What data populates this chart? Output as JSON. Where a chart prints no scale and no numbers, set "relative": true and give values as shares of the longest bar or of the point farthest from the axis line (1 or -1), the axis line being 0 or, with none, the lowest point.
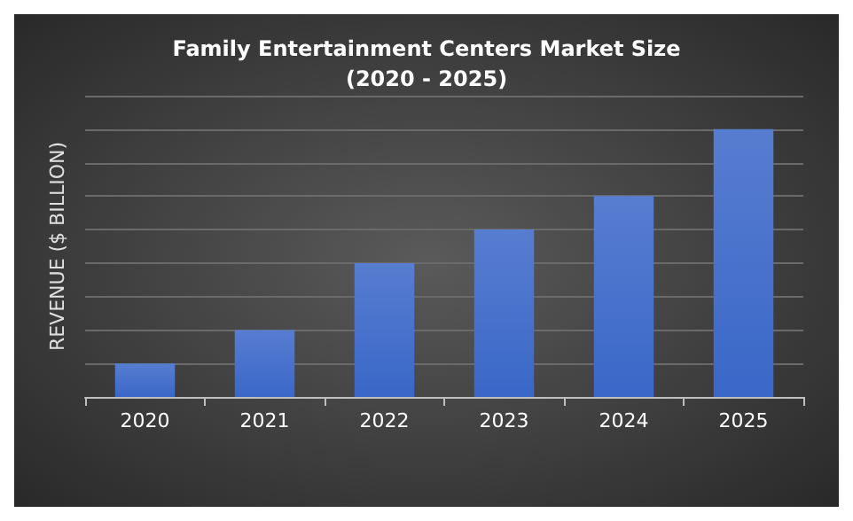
{
  "chart_data": {
    "type": "bar",
    "title": "Family Entertainment Centers Market Size\n(2020 - 2025)",
    "ylabel": "REVENUE ($ BILLION)",
    "categories": [
      "2020",
      "2021",
      "2022",
      "2023",
      "2024",
      "2025"
    ],
    "values": [
      0.125,
      0.25,
      0.5,
      0.625,
      0.75,
      1
    ],
    "color": "#3a67c8",
    "relative": true,
    "grid": "y"
  }
}
